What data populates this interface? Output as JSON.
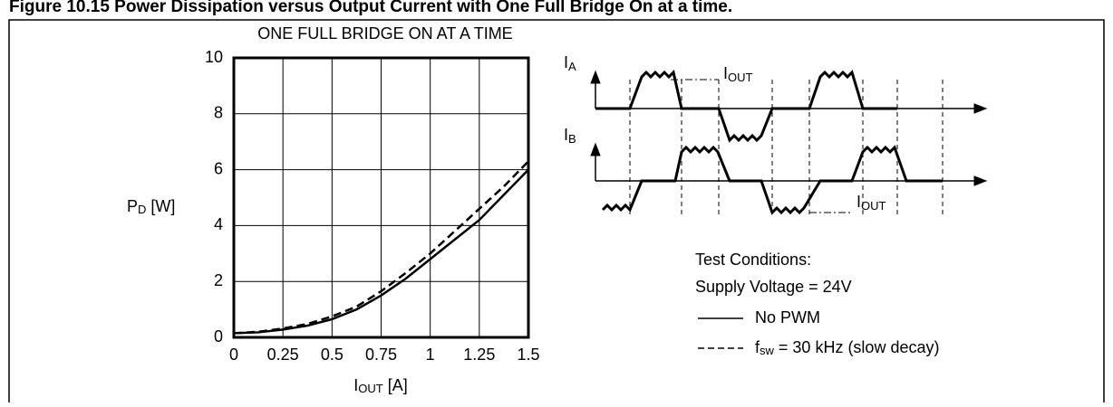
{
  "header": {
    "title": "Figure 10.15 Power Dissipation versus Output Current with One Full Bridge On at a time."
  },
  "chart_data": {
    "type": "line",
    "subtitle": "ONE FULL BRIDGE ON AT A TIME",
    "y_label": {
      "main": "P",
      "sub": "D",
      "rest": " [W]"
    },
    "x_label": {
      "main": "I",
      "sub": "OUT",
      "rest": " [A]"
    },
    "x": [
      0,
      0.125,
      0.25,
      0.375,
      0.5,
      0.625,
      0.75,
      0.875,
      1,
      1.125,
      1.25,
      1.375,
      1.5
    ],
    "series": [
      {
        "name": "No PWM",
        "color": "#000000",
        "dash": false,
        "values": [
          0.15,
          0.18,
          0.28,
          0.42,
          0.65,
          1.0,
          1.5,
          2.1,
          2.8,
          3.5,
          4.2,
          5.1,
          6.0
        ]
      },
      {
        "name": {
          "main": "f",
          "sub": "sw",
          "rest": " = 30 kHz (slow decay)"
        },
        "color": "#000000",
        "dash": true,
        "values": [
          0.15,
          0.2,
          0.32,
          0.48,
          0.75,
          1.1,
          1.65,
          2.3,
          3.0,
          3.8,
          4.6,
          5.4,
          6.3
        ]
      }
    ],
    "xlim": [
      0,
      1.5
    ],
    "xticks": [
      0,
      0.25,
      0.5,
      0.75,
      1,
      1.25,
      1.5
    ],
    "ylim": [
      0,
      10
    ],
    "yticks": [
      0,
      2,
      4,
      6,
      8,
      10
    ],
    "grid": true,
    "legend_title": [
      "Test Conditions:",
      "Supply Voltage = 24V"
    ]
  },
  "diagram": {
    "labels": {
      "ia": {
        "main": "I",
        "sub": "A"
      },
      "ib": {
        "main": "I",
        "sub": "B"
      },
      "iout_top": {
        "main": "I",
        "sub": "OUT"
      },
      "iout_bottom": {
        "main": "I",
        "sub": "OUT"
      }
    }
  }
}
